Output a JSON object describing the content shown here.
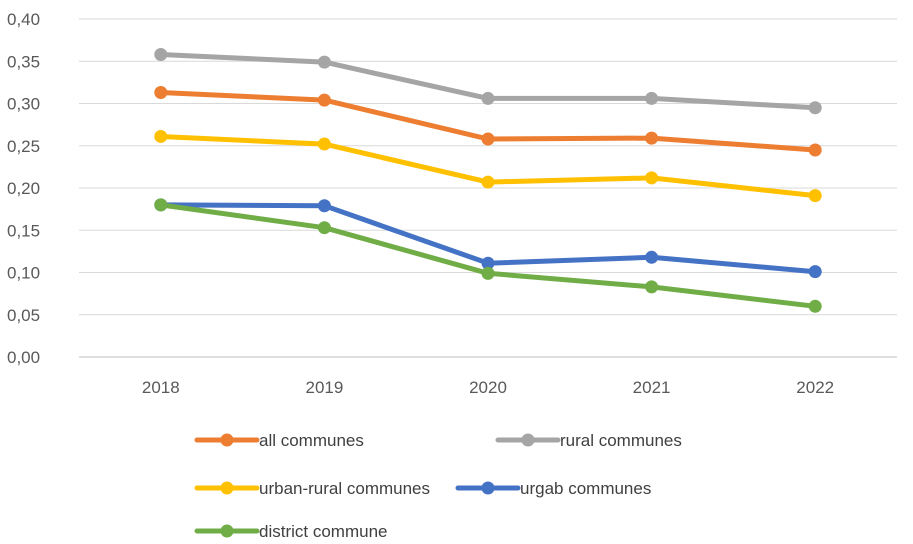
{
  "chart_data": {
    "type": "line",
    "title": "",
    "xlabel": "",
    "ylabel": "",
    "categories": [
      "2018",
      "2019",
      "2020",
      "2021",
      "2022"
    ],
    "y_ticks": [
      "0,00",
      "0,05",
      "0,10",
      "0,15",
      "0,20",
      "0,25",
      "0,30",
      "0,35",
      "0,40"
    ],
    "ylim": [
      0,
      0.4
    ],
    "grid": true,
    "legend_position": "bottom",
    "series": [
      {
        "name": "all communes",
        "color": "#ED7D31",
        "values": [
          0.313,
          0.304,
          0.258,
          0.259,
          0.245
        ]
      },
      {
        "name": "rural communes",
        "color": "#A5A5A5",
        "values": [
          0.358,
          0.349,
          0.306,
          0.306,
          0.295
        ]
      },
      {
        "name": "urban-rural communes",
        "color": "#FFC000",
        "values": [
          0.261,
          0.252,
          0.207,
          0.212,
          0.191
        ]
      },
      {
        "name": "urgab communes",
        "color": "#4472C4",
        "values": [
          0.18,
          0.179,
          0.111,
          0.118,
          0.101
        ]
      },
      {
        "name": "district commune",
        "color": "#70AD47",
        "values": [
          0.18,
          0.153,
          0.099,
          0.083,
          0.06
        ]
      }
    ]
  }
}
